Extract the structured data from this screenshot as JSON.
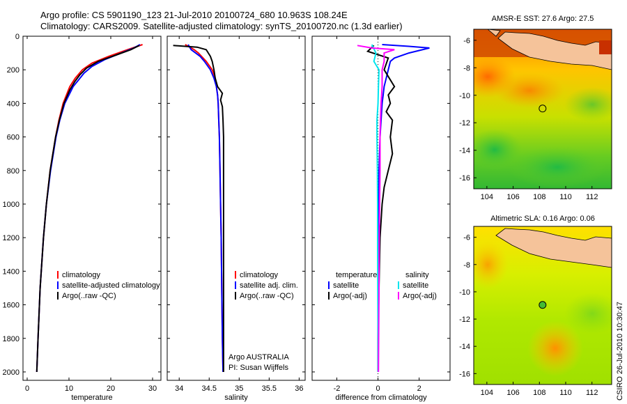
{
  "title_lines": [
    "Argo profile: CS 5901190_123 21-Jul-2010 20100724_680 10.963S 108.24E",
    "Climatology: CARS2009. Satellite-adjusted climatology: synTS_20100720.nc (1.3d earlier)"
  ],
  "depth_axis": {
    "ylim": [
      0,
      2050
    ],
    "ticks": [
      0,
      200,
      400,
      600,
      800,
      1000,
      1200,
      1400,
      1600,
      1800,
      2000
    ]
  },
  "colors": {
    "red": "#ff0000",
    "blue": "#0000ff",
    "black": "#000000",
    "cyan": "#00e5ee",
    "magenta": "#ff00ff"
  },
  "chart_data": [
    {
      "type": "line",
      "xlabel": "temperature",
      "xlim": [
        -1,
        32
      ],
      "xticks": [
        0,
        10,
        20,
        30
      ],
      "legend": {
        "placement": "lower-right",
        "entries": [
          "climatology",
          "satellite-adjusted climatology",
          "Argo(..raw -QC)"
        ]
      },
      "series": [
        {
          "name": "climatology",
          "color": "red",
          "depth": [
            50,
            80,
            120,
            160,
            200,
            250,
            300,
            400,
            500,
            600,
            800,
            1000,
            1200,
            1500,
            1800,
            2000
          ],
          "values": [
            27.6,
            24,
            19.5,
            15.5,
            13.2,
            11.5,
            10.2,
            8.6,
            7.6,
            6.8,
            5.5,
            4.6,
            3.9,
            3.1,
            2.6,
            2.3
          ]
        },
        {
          "name": "satellite-adjusted climatology",
          "color": "blue",
          "depth": [
            50,
            70,
            100,
            140,
            180,
            220,
            260,
            300,
            400,
            500,
            600,
            800,
            1000,
            1200,
            1500,
            1800,
            2000
          ],
          "values": [
            27.0,
            25.5,
            22.5,
            18.5,
            15.5,
            13.6,
            12.3,
            11.0,
            9.0,
            7.8,
            6.9,
            5.6,
            4.6,
            3.9,
            3.1,
            2.6,
            2.3
          ]
        },
        {
          "name": "Argo(..raw -QC)",
          "color": "black",
          "depth": [
            55,
            80,
            110,
            150,
            190,
            230,
            270,
            320,
            400,
            500,
            600,
            800,
            1000,
            1200,
            1500,
            1800,
            2000
          ],
          "values": [
            26.8,
            24.8,
            21.5,
            17.0,
            14.2,
            12.6,
            11.4,
            10.2,
            8.8,
            7.7,
            6.8,
            5.5,
            4.6,
            3.9,
            3.1,
            2.6,
            2.3
          ]
        }
      ]
    },
    {
      "type": "line",
      "xlabel": "salinity",
      "xlim": [
        33.8,
        36.1
      ],
      "xticks": [
        34,
        34.5,
        35,
        35.5,
        36
      ],
      "legend": {
        "placement": "lower-right",
        "entries": [
          "climatology",
          "satellite adj. clim.",
          "Argo(..raw -QC)"
        ]
      },
      "annotation": [
        "Argo AUSTRALIA",
        "PI: Susan Wijffels"
      ],
      "series": [
        {
          "name": "climatology",
          "color": "red",
          "depth": [
            50,
            80,
            100,
            150,
            200,
            250,
            300,
            350,
            400,
            500,
            600,
            800,
            1000,
            1200,
            1500,
            1800,
            2000
          ],
          "values": [
            34.1,
            34.25,
            34.32,
            34.45,
            34.55,
            34.6,
            34.62,
            34.64,
            34.65,
            34.66,
            34.67,
            34.68,
            34.69,
            34.7,
            34.71,
            34.72,
            34.73
          ]
        },
        {
          "name": "satellite adj. clim.",
          "color": "blue",
          "depth": [
            50,
            80,
            120,
            150,
            200,
            250,
            300,
            350,
            400,
            500,
            600,
            800,
            1000,
            1200,
            1500,
            1800,
            2000
          ],
          "values": [
            34.15,
            34.2,
            34.35,
            34.42,
            34.52,
            34.58,
            34.62,
            34.64,
            34.65,
            34.66,
            34.67,
            34.68,
            34.69,
            34.7,
            34.71,
            34.72,
            34.73
          ]
        },
        {
          "name": "Argo(..raw -QC)",
          "color": "black",
          "depth": [
            55,
            65,
            80,
            120,
            150,
            200,
            250,
            300,
            340,
            380,
            420,
            500,
            600,
            800,
            1000,
            1200,
            1500,
            1800,
            2000
          ],
          "values": [
            33.9,
            34.3,
            34.45,
            34.52,
            34.55,
            34.58,
            34.6,
            34.64,
            34.72,
            34.69,
            34.72,
            34.73,
            34.74,
            34.74,
            34.74,
            34.74,
            34.74,
            34.74,
            34.74
          ]
        }
      ]
    },
    {
      "type": "line",
      "xlabel": "difference from climatology",
      "xlim": [
        -3.2,
        3.5
      ],
      "xticks": [
        -2,
        0,
        2
      ],
      "legend": {
        "placement": "lower-center",
        "headers": [
          "temperature",
          "salinity"
        ],
        "entries": [
          "satellite",
          "Argo(-adj)",
          "satellite",
          "Argo(-adj)"
        ]
      },
      "series": [
        {
          "name": "satellite",
          "color": "blue",
          "group": "temperature",
          "depth": [
            50,
            60,
            70,
            100,
            130,
            150,
            200,
            250,
            300,
            350,
            400,
            500,
            600,
            800,
            1000,
            1200,
            1500,
            1800,
            2000
          ],
          "values": [
            0.2,
            1.5,
            2.5,
            1.5,
            0.8,
            0.6,
            0.5,
            0.4,
            0.3,
            0.25,
            0.2,
            0.15,
            0.1,
            0.05,
            0.03,
            0.02,
            0.01,
            0.0,
            0.0
          ]
        },
        {
          "name": "Argo(-adj)",
          "color": "black",
          "group": "temperature",
          "depth": [
            55,
            90,
            130,
            200,
            300,
            350,
            400,
            450,
            500,
            600,
            700,
            800,
            900,
            1000,
            1200,
            1500,
            1800,
            2000
          ],
          "values": [
            -0.2,
            -0.5,
            0.5,
            0.3,
            0.8,
            0.5,
            0.6,
            0.4,
            0.7,
            0.6,
            0.7,
            0.5,
            0.3,
            0.2,
            0.1,
            0.05,
            0.0,
            0.0
          ]
        },
        {
          "name": "satellite",
          "color": "cyan",
          "group": "salinity",
          "depth": [
            50,
            100,
            150,
            200,
            300,
            400,
            500,
            600,
            800,
            1000,
            1200,
            1500,
            1800,
            2000
          ],
          "values": [
            -0.3,
            -0.1,
            -0.2,
            0.05,
            0.02,
            0.0,
            -0.05,
            -0.05,
            -0.03,
            -0.02,
            -0.02,
            -0.01,
            0.0,
            0.0
          ]
        },
        {
          "name": "Argo(-adj)",
          "color": "magenta",
          "group": "salinity",
          "depth": [
            55,
            70,
            80,
            100,
            150,
            200,
            300,
            400,
            500,
            600,
            800,
            1000,
            1200,
            1500,
            1800,
            2000
          ],
          "values": [
            -1.0,
            -0.3,
            0.8,
            0.3,
            0.3,
            0.2,
            0.2,
            0.15,
            0.12,
            0.1,
            0.1,
            0.08,
            0.06,
            0.05,
            0.03,
            0.02
          ]
        }
      ]
    },
    {
      "type": "heatmap",
      "title": "AMSR-E SST: 27.6  Argo: 27.5",
      "xlim": [
        103,
        113.5
      ],
      "ylim": [
        -16.8,
        -5.2
      ],
      "xticks": [
        104,
        106,
        108,
        110,
        112
      ],
      "yticks": [
        -6,
        -8,
        -10,
        -12,
        -14,
        -16
      ],
      "marker": {
        "lon": 108.24,
        "lat": -10.963
      }
    },
    {
      "type": "heatmap",
      "title": "Altimetric SLA: 0.16  Argo: 0.06",
      "xlim": [
        103,
        113.5
      ],
      "ylim": [
        -16.8,
        -5.2
      ],
      "xticks": [
        104,
        106,
        108,
        110,
        112
      ],
      "yticks": [
        -6,
        -8,
        -10,
        -12,
        -14,
        -16
      ],
      "marker": {
        "lon": 108.24,
        "lat": -10.963
      }
    }
  ],
  "side_label": "CSIRO 26-Jul-2010 10:30:47"
}
